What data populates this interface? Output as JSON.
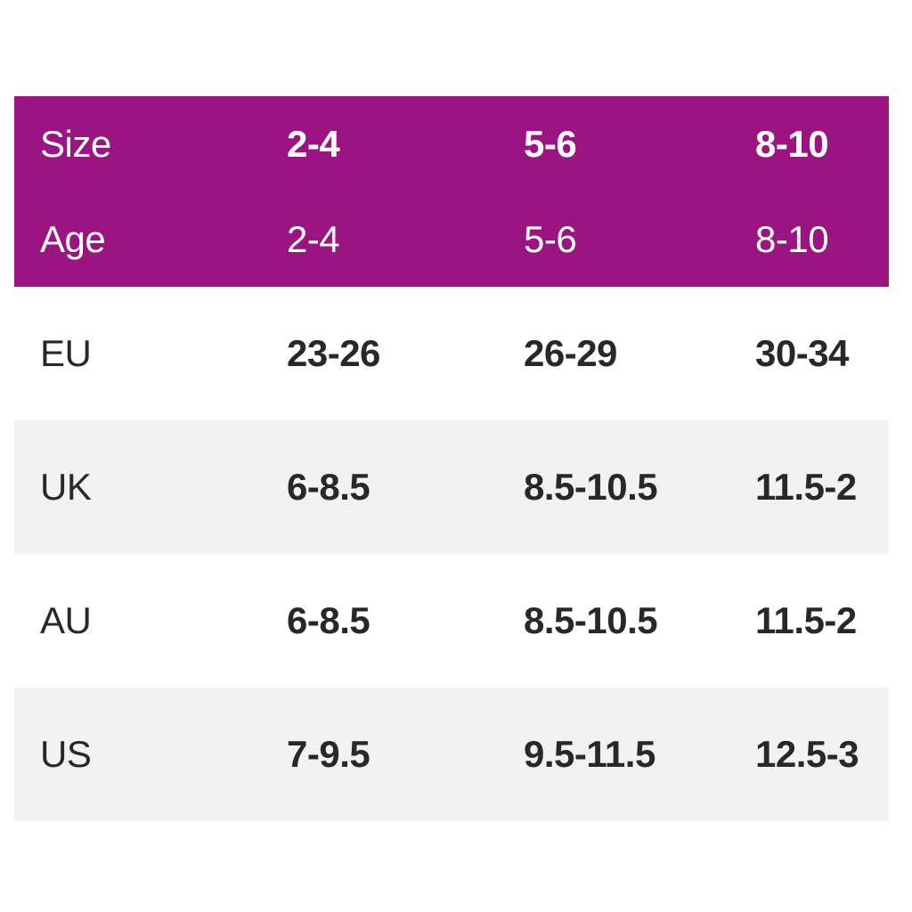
{
  "theme": {
    "accent_purple": "#9a1482",
    "row_alt_grey": "#f2f2f2",
    "text_dark": "#282828",
    "text_on_accent": "#ffffff",
    "page_background": "#ffffff"
  },
  "chart_data": {
    "type": "table",
    "description": "Kids shoe size conversion chart",
    "header_rows": [
      {
        "label": "Size",
        "values": [
          "2-4",
          "5-6",
          "8-10"
        ]
      },
      {
        "label": "Age",
        "values": [
          "2-4",
          "5-6",
          "8-10"
        ]
      }
    ],
    "body_rows": [
      {
        "label": "EU",
        "values": [
          "23-26",
          "26-29",
          "30-34"
        ],
        "shaded": false
      },
      {
        "label": "UK",
        "values": [
          "6-8.5",
          "8.5-10.5",
          "11.5-2"
        ],
        "shaded": true
      },
      {
        "label": "AU",
        "values": [
          "6-8.5",
          "8.5-10.5",
          "11.5-2"
        ],
        "shaded": false
      },
      {
        "label": "US",
        "values": [
          "7-9.5",
          "9.5-11.5",
          "12.5-3"
        ],
        "shaded": true
      }
    ]
  }
}
